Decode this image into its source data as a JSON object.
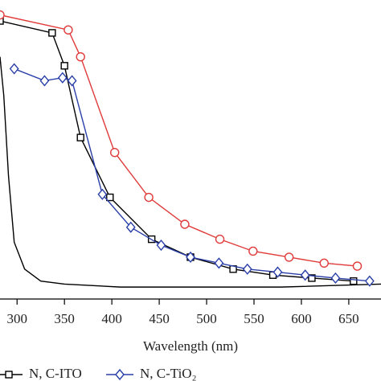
{
  "chart_data": {
    "type": "line",
    "x_label": "Wavelength (nm)",
    "xlim": [
      282,
      684
    ],
    "xticks": [
      300,
      350,
      400,
      450,
      500,
      550,
      600,
      650
    ],
    "ylim": [
      0,
      1
    ],
    "series": [
      {
        "color": "#000000",
        "marker": "none",
        "x": [
          282,
          286,
          291,
          297,
          308,
          325,
          350,
          409,
          494,
          579,
          684
        ],
        "values": [
          0.81,
          0.68,
          0.41,
          0.19,
          0.1,
          0.06,
          0.05,
          0.04,
          0.04,
          0.04,
          0.05
        ]
      },
      {
        "name": "N, C-ITO",
        "color": "#000000",
        "marker": "square",
        "x": [
          282,
          337,
          350,
          367,
          398,
          442,
          483,
          528,
          570,
          611,
          655
        ],
        "values": [
          0.93,
          0.89,
          0.78,
          0.54,
          0.34,
          0.2,
          0.14,
          0.1,
          0.08,
          0.07,
          0.06
        ]
      },
      {
        "name": "N, C-TiO₂",
        "color": "#2a3fa8",
        "marker": "diamond",
        "x": [
          297,
          329,
          348,
          358,
          390,
          420,
          452,
          483,
          513,
          543,
          575,
          604,
          636,
          672
        ],
        "values": [
          0.77,
          0.73,
          0.74,
          0.73,
          0.35,
          0.24,
          0.18,
          0.14,
          0.12,
          0.1,
          0.09,
          0.08,
          0.07,
          0.06
        ]
      },
      {
        "color": "#e03a3a",
        "marker": "circle",
        "x": [
          282,
          354,
          367,
          403,
          439,
          477,
          514,
          549,
          587,
          624,
          659
        ],
        "values": [
          0.95,
          0.9,
          0.81,
          0.49,
          0.34,
          0.25,
          0.2,
          0.16,
          0.14,
          0.12,
          0.11
        ]
      }
    ]
  }
}
